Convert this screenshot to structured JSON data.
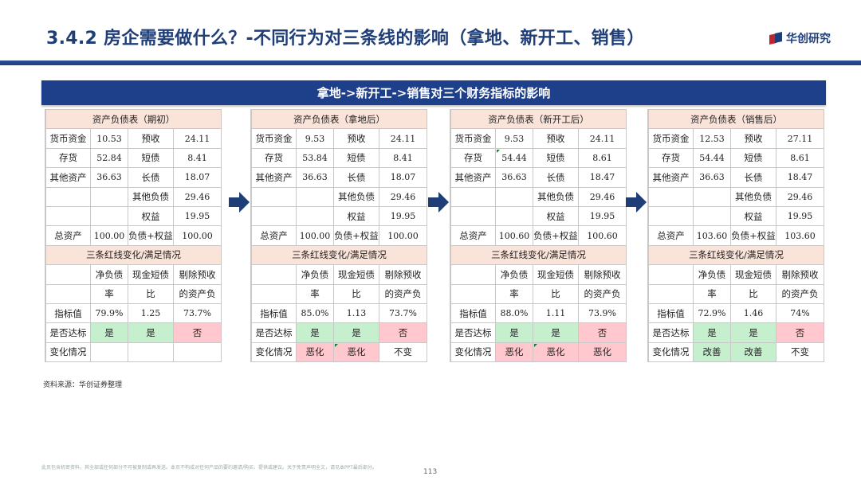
{
  "header": {
    "title": "3.4.2 房企需要做什么？-不同行为对三条线的影响（拿地、新开工、销售）",
    "logo_text": "华创研究"
  },
  "banner": "拿地->新开工->销售对三个财务指标的影响",
  "labels": {
    "cash": "货币资金",
    "inventory": "存货",
    "other_assets": "其他资产",
    "total_assets": "总资产",
    "advance": "预收",
    "short_debt": "短债",
    "long_debt": "长债",
    "other_liab": "其他负债",
    "equity": "权益",
    "liab_equity": "负债+权益",
    "redline_title": "三条红线变化/满足情况",
    "col1_a": "净负债",
    "col1_b": "率",
    "col2_a": "现金短债",
    "col2_b": "比",
    "col3_a": "剔除预收",
    "col3_b": "的资产负",
    "indicator": "指标值",
    "pass": "是否达标",
    "change": "变化情况"
  },
  "panels": [
    {
      "title": "资产负债表（期初）",
      "cash": "10.53",
      "advance": "24.11",
      "inventory": "52.84",
      "short_debt": "8.41",
      "other_assets": "36.63",
      "long_debt": "18.07",
      "other_liab": "29.46",
      "equity": "19.95",
      "total_assets": "100.00",
      "liab_equity": "100.00",
      "ind1": "79.9%",
      "ind2": "1.25",
      "ind3": "73.7%",
      "pass1": "是",
      "pass2": "是",
      "pass3": "否",
      "chg1": "",
      "chg2": "",
      "chg3": ""
    },
    {
      "title": "资产负债表（拿地后）",
      "cash": "9.53",
      "advance": "24.11",
      "inventory": "53.84",
      "short_debt": "8.41",
      "other_assets": "36.63",
      "long_debt": "18.07",
      "other_liab": "29.46",
      "equity": "19.95",
      "total_assets": "100.00",
      "liab_equity": "100.00",
      "ind1": "85.0%",
      "ind2": "1.13",
      "ind3": "73.7%",
      "pass1": "是",
      "pass2": "是",
      "pass3": "否",
      "chg1": "恶化",
      "chg2": "恶化",
      "chg3": "不变"
    },
    {
      "title": "资产负债表（新开工后）",
      "cash": "9.53",
      "advance": "24.11",
      "inventory": "54.44",
      "short_debt": "8.61",
      "other_assets": "36.63",
      "long_debt": "18.47",
      "other_liab": "29.46",
      "equity": "19.95",
      "total_assets": "100.60",
      "liab_equity": "100.60",
      "ind1": "88.0%",
      "ind2": "1.11",
      "ind3": "73.9%",
      "pass1": "是",
      "pass2": "是",
      "pass3": "否",
      "chg1": "恶化",
      "chg2": "恶化",
      "chg3": "恶化"
    },
    {
      "title": "资产负债表（销售后）",
      "cash": "12.53",
      "advance": "27.11",
      "inventory": "54.44",
      "short_debt": "8.61",
      "other_assets": "36.63",
      "long_debt": "18.47",
      "other_liab": "29.46",
      "equity": "19.95",
      "total_assets": "103.60",
      "liab_equity": "103.60",
      "ind1": "72.9%",
      "ind2": "1.46",
      "ind3": "74%",
      "pass1": "是",
      "pass2": "是",
      "pass3": "否",
      "chg1": "改善",
      "chg2": "改善",
      "chg3": "不变"
    }
  ],
  "colors": {
    "title": "#1f3e78",
    "banner": "#1e3f8a",
    "header_fill": "#fae3d8",
    "good_fill": "#c6efce",
    "bad_fill": "#ffc7ce",
    "arrow": "#1f3e78"
  },
  "source": "资料来源：华创证券整理",
  "disclaimer": "此页包含机密资料，其全部或任何部分不可被复制或再发送。本页不构成对任何产品的要约邀请/购买、提供或建议。关于免责声明全文，请见本PPT最后部分。",
  "page_number": "113"
}
